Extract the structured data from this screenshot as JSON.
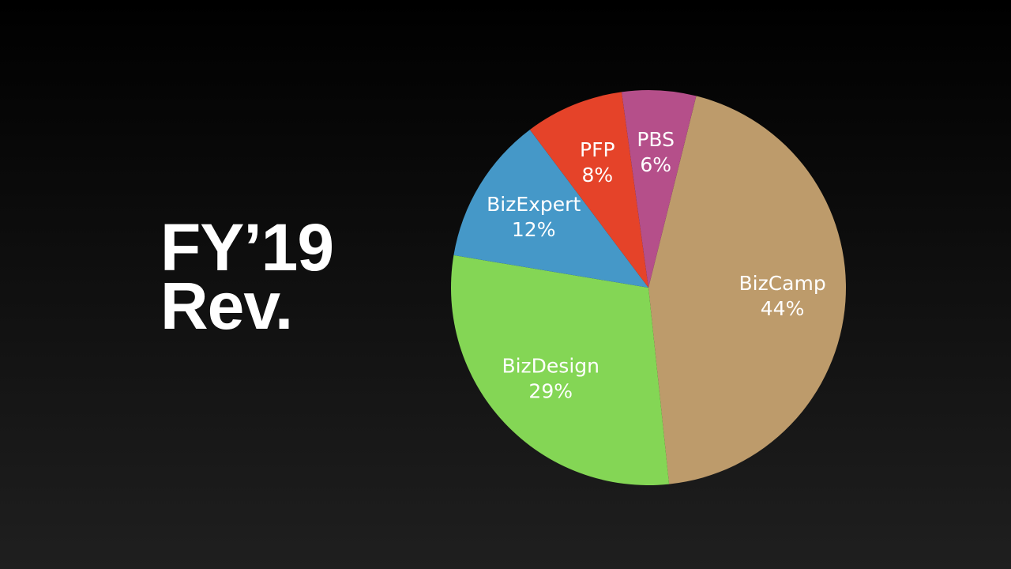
{
  "chart_data": {
    "type": "pie",
    "title": "FY’19 Rev.",
    "categories": [
      "BizCamp",
      "BizDesign",
      "BizExpert",
      "PFP",
      "PBS"
    ],
    "values": [
      44,
      29,
      12,
      8,
      6
    ],
    "value_labels": [
      "44%",
      "29%",
      "12%",
      "8%",
      "6%"
    ],
    "colors": [
      "#bd9b6b",
      "#84d655",
      "#4598c8",
      "#e54329",
      "#b54f8a"
    ]
  }
}
